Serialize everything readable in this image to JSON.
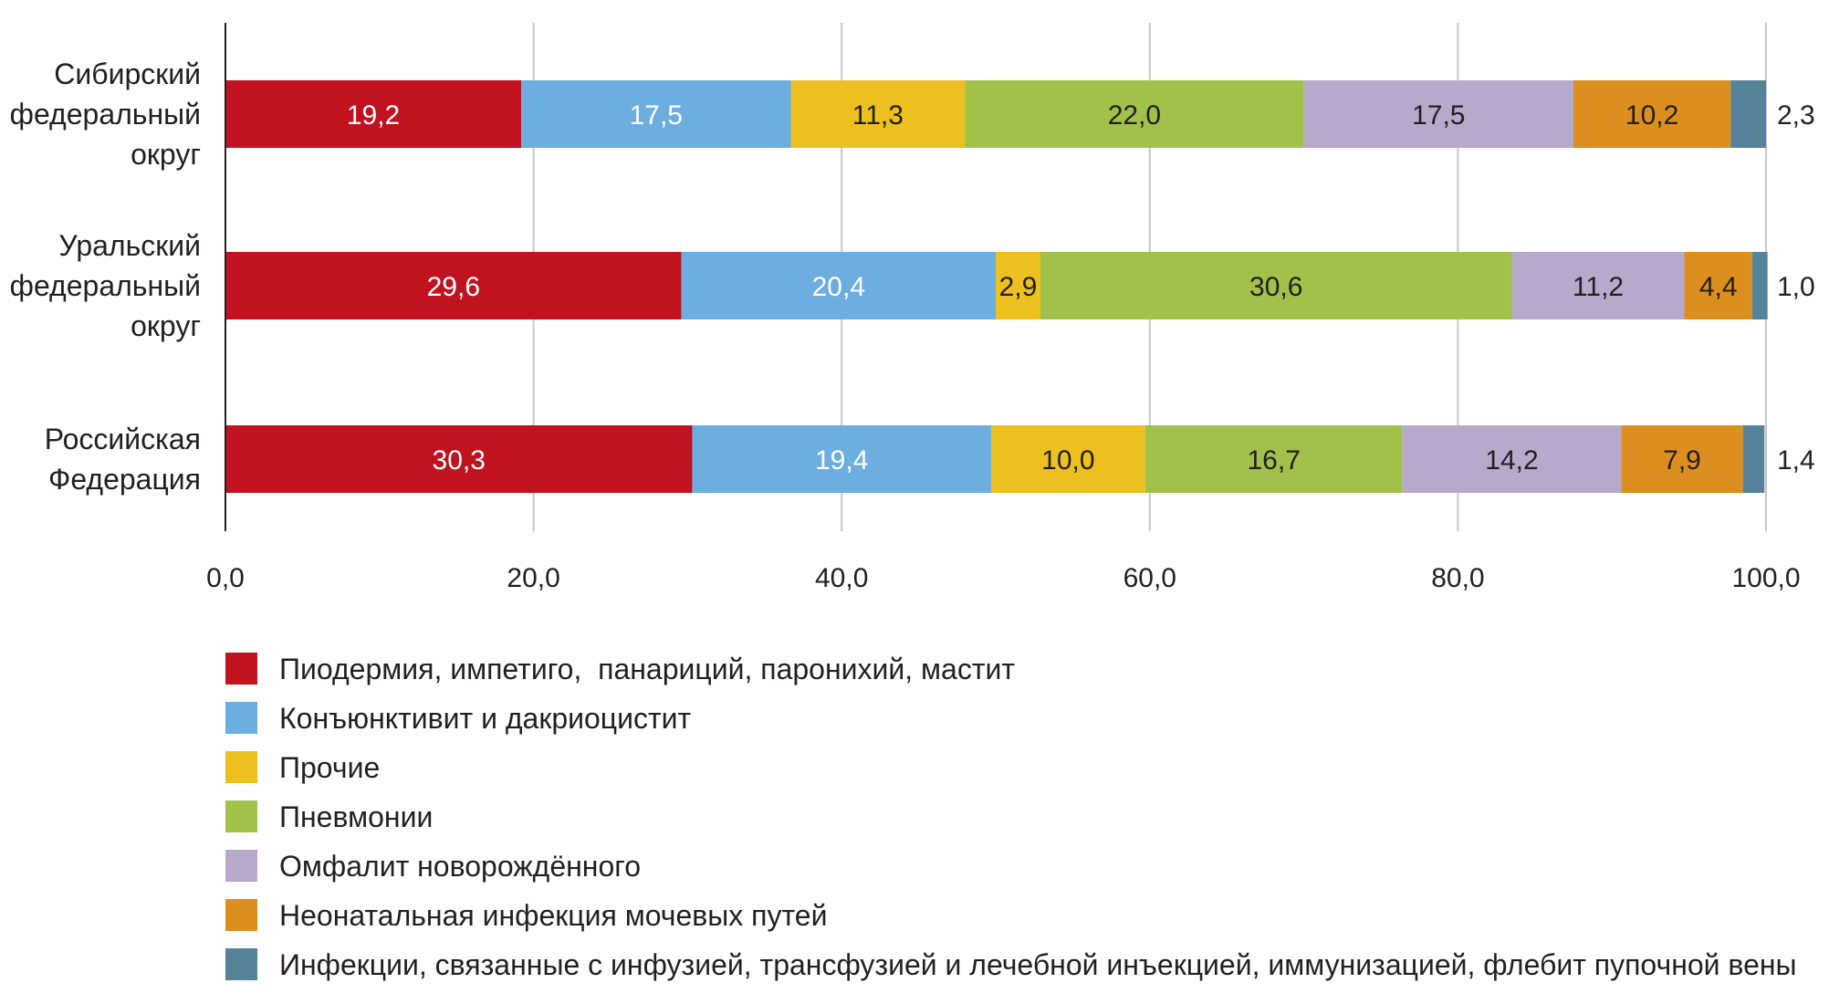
{
  "chart_data": {
    "type": "bar",
    "orientation": "horizontal",
    "stacked": true,
    "categories": [
      [
        "Сибирский",
        "федеральный",
        "округ"
      ],
      [
        "Уральский",
        "федеральный",
        "округ"
      ],
      [
        "Российская",
        "Федерация"
      ]
    ],
    "xlim": [
      0,
      100
    ],
    "xticks": [
      "0,0",
      "20,0",
      "40,0",
      "60,0",
      "80,0",
      "100,0"
    ],
    "grid": "vertical",
    "legend_position": "bottom",
    "series": [
      {
        "name": "Пиодермия, импетиго,  панариций, паронихий, мастит",
        "color": "#c1121f",
        "values": [
          19.2,
          29.6,
          30.3
        ],
        "labels": [
          "19,2",
          "29,6",
          "30,3"
        ],
        "label_color": "#ffffff"
      },
      {
        "name": "Конъюнктивит и дакриоцистит",
        "color": "#6caee0",
        "values": [
          17.5,
          20.4,
          19.4
        ],
        "labels": [
          "17,5",
          "20,4",
          "19,4"
        ],
        "label_color": "#ffffff"
      },
      {
        "name": "Прочие",
        "color": "#ecc01f",
        "values": [
          11.3,
          2.9,
          10.0
        ],
        "labels": [
          "11,3",
          "2,9",
          "10,0"
        ],
        "label_color": "#231f20"
      },
      {
        "name": "Пневмонии",
        "color": "#a2c14a",
        "values": [
          22.0,
          30.6,
          16.7
        ],
        "labels": [
          "22,0",
          "30,6",
          "16,7"
        ],
        "label_color": "#231f20"
      },
      {
        "name": "Омфалит новорождённого",
        "color": "#b7a9cc",
        "values": [
          17.5,
          11.2,
          14.2
        ],
        "labels": [
          "17,5",
          "11,2",
          "14,2"
        ],
        "label_color": "#231f20"
      },
      {
        "name": "Неонатальная инфекция мочевых путей",
        "color": "#dc8f1e",
        "values": [
          10.2,
          4.4,
          7.9
        ],
        "labels": [
          "10,2",
          "4,4",
          "7,9"
        ],
        "label_color": "#231f20"
      },
      {
        "name": "Инфекции, связанные с инфузией, трансфузией и лечебной инъекцией, иммунизацией, флебит пупочной вены",
        "color": "#56839a",
        "values": [
          2.3,
          1.0,
          1.4
        ],
        "labels": [
          "2,3",
          "1,0",
          "1,4"
        ],
        "label_color": "#231f20",
        "label_outside": true
      }
    ]
  }
}
